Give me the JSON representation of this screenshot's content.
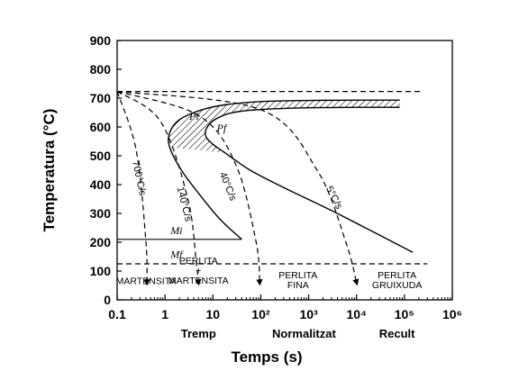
{
  "chart_data": {
    "type": "line",
    "title": "",
    "xlabel": "Temps (s)",
    "ylabel": "Temperatura (°C)",
    "x_scale": "log",
    "xlim": [
      0.1,
      1000000
    ],
    "ylim": [
      0,
      900
    ],
    "x_tick_labels": [
      "0.1",
      "1",
      "10",
      "10²",
      "10³",
      "10⁴",
      "10⁵",
      "10⁶"
    ],
    "x_tick_values": [
      0.1,
      1,
      10,
      100,
      1000,
      10000,
      100000,
      1000000
    ],
    "y_tick_labels": [
      "0",
      "100",
      "200",
      "300",
      "400",
      "500",
      "600",
      "700",
      "800",
      "900"
    ],
    "y_tick_values": [
      0,
      100,
      200,
      300,
      400,
      500,
      600,
      700,
      800,
      900
    ],
    "grid": false,
    "reference_lines": [
      {
        "name": "eutectoid",
        "y": 723,
        "x_range": [
          0.1,
          250000
        ],
        "style": "dashed"
      },
      {
        "name": "Mi",
        "label": "Mi",
        "y": 210,
        "x_range": [
          0.1,
          40
        ],
        "style": "solid"
      },
      {
        "name": "Mf",
        "label": "Mf",
        "y": 125,
        "x_range": [
          0.1,
          300000
        ],
        "style": "dashed"
      }
    ],
    "curves": [
      {
        "name": "pearlite-start",
        "label": "Pi",
        "style": "solid",
        "points": [
          [
            40,
            210
          ],
          [
            14,
            280
          ],
          [
            5,
            370
          ],
          [
            2.2,
            450
          ],
          [
            1.25,
            530
          ],
          [
            1.25,
            580
          ],
          [
            2,
            625
          ],
          [
            6,
            660
          ],
          [
            20,
            678
          ],
          [
            100,
            688
          ],
          [
            1000,
            692
          ],
          [
            10000,
            693
          ],
          [
            80000,
            693
          ]
        ]
      },
      {
        "name": "pearlite-finish",
        "label": "Pf",
        "style": "solid",
        "points": [
          [
            150000,
            165
          ],
          [
            30000,
            225
          ],
          [
            3000,
            310
          ],
          [
            300,
            390
          ],
          [
            60,
            450
          ],
          [
            18,
            510
          ],
          [
            10,
            540
          ],
          [
            7,
            570
          ],
          [
            8,
            605
          ],
          [
            14,
            635
          ],
          [
            40,
            655
          ],
          [
            400,
            665
          ],
          [
            10000,
            668
          ],
          [
            80000,
            668
          ]
        ]
      }
    ],
    "cooling_curves": [
      {
        "name": "cooling-700",
        "label": "700°C/s",
        "style": "dashed",
        "points": [
          [
            0.1,
            723
          ],
          [
            0.25,
            520
          ],
          [
            0.4,
            200
          ],
          [
            0.42,
            60
          ]
        ]
      },
      {
        "name": "cooling-140",
        "label": "140°C/s",
        "style": "dashed",
        "points": [
          [
            0.1,
            723
          ],
          [
            0.8,
            620
          ],
          [
            3,
            350
          ],
          [
            4.5,
            130
          ],
          [
            5,
            60
          ]
        ]
      },
      {
        "name": "cooling-40",
        "label": "40°C/s",
        "style": "dashed",
        "points": [
          [
            0.1,
            723
          ],
          [
            5,
            640
          ],
          [
            30,
            470
          ],
          [
            80,
            200
          ],
          [
            95,
            60
          ]
        ]
      },
      {
        "name": "cooling-5",
        "label": "5°C/s",
        "style": "dashed",
        "points": [
          [
            0.1,
            723
          ],
          [
            100,
            660
          ],
          [
            1500,
            450
          ],
          [
            6000,
            200
          ],
          [
            10000,
            60
          ]
        ]
      }
    ],
    "regions": [
      {
        "name": "martensita",
        "lines": [
          "MARTENSITA"
        ],
        "x": 0.4,
        "y": 55
      },
      {
        "name": "perlita-martensita",
        "lines": [
          "PERLITA",
          "+",
          "MARTENSITA"
        ],
        "x": 5,
        "y": 90
      },
      {
        "name": "perlita-fina",
        "lines": [
          "PERLITA",
          "FINA"
        ],
        "x": 600,
        "y": 75
      },
      {
        "name": "perlita-gruixuda",
        "lines": [
          "PERLITA",
          "GRUIXUDA"
        ],
        "x": 70000,
        "y": 75
      }
    ],
    "process_labels": [
      {
        "name": "tremp",
        "label": "Tremp",
        "x": 5
      },
      {
        "name": "normalitzat",
        "label": "Normalitzat",
        "x": 800
      },
      {
        "name": "recult",
        "label": "Recult",
        "x": 70000
      }
    ]
  }
}
